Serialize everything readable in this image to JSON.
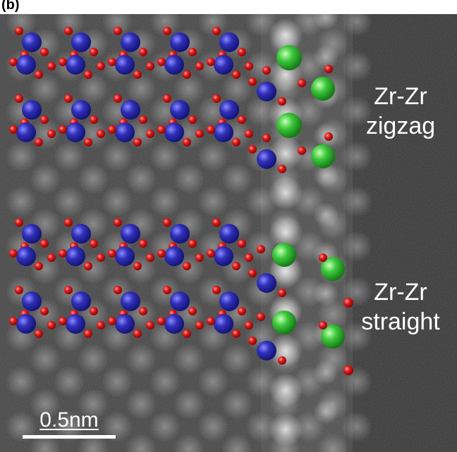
{
  "panel_label": "(b)",
  "annotations": {
    "zigzag_line1": "Zr-Zr",
    "zigzag_line2": "zigzag",
    "straight_line1": "Zr-Zr",
    "straight_line2": "straight"
  },
  "scalebar": {
    "label": "0.5nm"
  },
  "colors": {
    "background": "#3c3c3c",
    "atom_blue": "#2a2aa8",
    "atom_red": "#e01010",
    "atom_green": "#33c433",
    "text": "#ffffff"
  }
}
